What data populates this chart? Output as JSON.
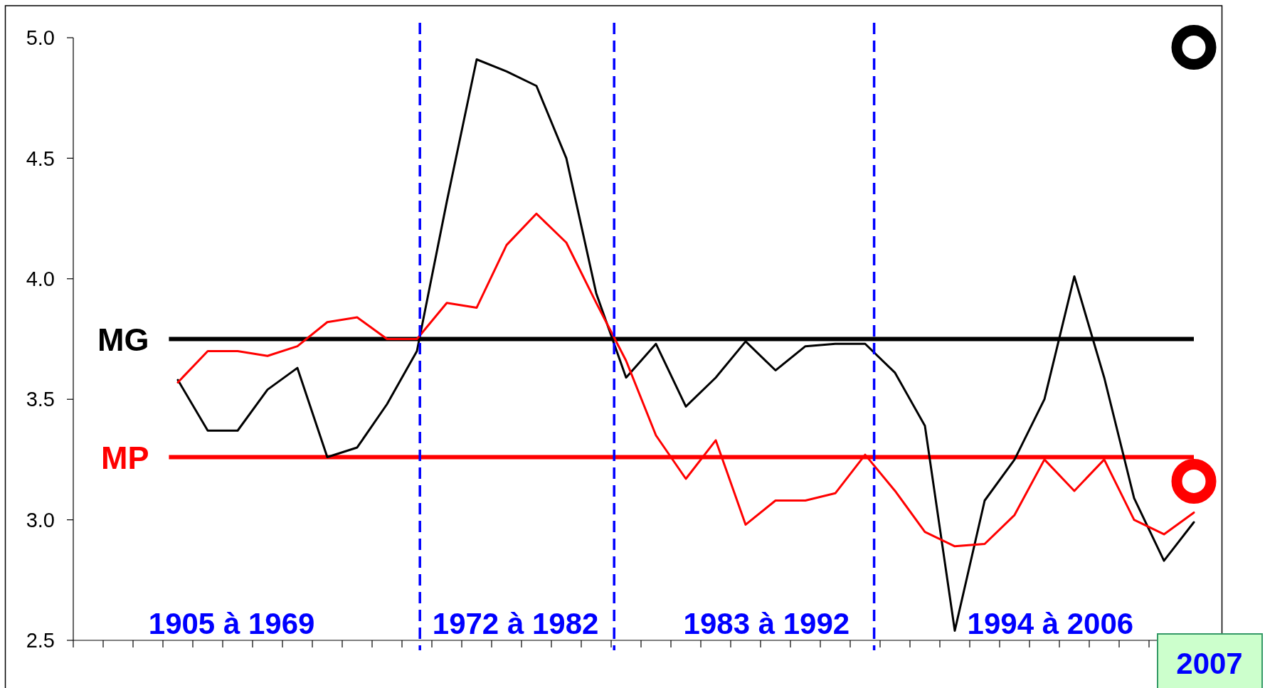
{
  "chart_data": {
    "type": "line",
    "categories": [
      null,
      null,
      null,
      null,
      null,
      null,
      null,
      null,
      null,
      null,
      null,
      null,
      null,
      null,
      null,
      null,
      null,
      null,
      null,
      null,
      null,
      null,
      null,
      null,
      null,
      null,
      null,
      null,
      null,
      null,
      null,
      null,
      null,
      null,
      null,
      null,
      null,
      null
    ],
    "series": [
      {
        "color": "#000000",
        "values": [
          null,
          null,
          null,
          3.58,
          3.37,
          3.37,
          3.54,
          3.63,
          3.26,
          3.3,
          3.48,
          3.7,
          4.32,
          4.91,
          4.86,
          4.8,
          4.5,
          3.94,
          3.59,
          3.73,
          3.47,
          3.59,
          3.74,
          3.62,
          3.72,
          3.73,
          3.73,
          3.61,
          3.39,
          2.54,
          3.08,
          3.25,
          3.5,
          4.01,
          3.59,
          3.09,
          2.83,
          2.99
        ]
      },
      {
        "color": "#ff0000",
        "values": [
          null,
          null,
          null,
          3.57,
          3.7,
          3.7,
          3.68,
          3.72,
          3.82,
          3.84,
          3.75,
          3.75,
          3.9,
          3.88,
          4.14,
          4.27,
          4.15,
          3.9,
          3.66,
          3.35,
          3.17,
          3.33,
          2.98,
          3.08,
          3.08,
          3.11,
          3.27,
          3.12,
          2.95,
          2.89,
          2.9,
          3.02,
          3.25,
          3.12,
          3.25,
          3.0,
          2.94,
          3.03
        ]
      },
      {
        "type": "scatter",
        "marker": "circle",
        "color": "#000000",
        "values": [
          null,
          null,
          null,
          null,
          null,
          null,
          null,
          null,
          null,
          null,
          null,
          null,
          null,
          null,
          null,
          null,
          null,
          null,
          null,
          null,
          null,
          null,
          null,
          null,
          null,
          null,
          null,
          null,
          null,
          null,
          null,
          null,
          null,
          null,
          null,
          null,
          null,
          4.96
        ]
      },
      {
        "type": "scatter",
        "marker": "circle",
        "color": "#ff0000",
        "values": [
          null,
          null,
          null,
          null,
          null,
          null,
          null,
          null,
          null,
          null,
          null,
          null,
          null,
          null,
          null,
          null,
          null,
          null,
          null,
          null,
          null,
          null,
          null,
          null,
          null,
          null,
          null,
          null,
          null,
          null,
          null,
          null,
          null,
          null,
          null,
          null,
          null,
          3.16
        ]
      }
    ],
    "ylim": [
      2.5,
      5.0
    ],
    "yticks": [
      2.5,
      {
        "value": 3,
        "label": "3.0"
      },
      3.5,
      {
        "value": 4,
        "label": "4.0"
      },
      4.5,
      {
        "value": 5,
        "label": "5.0"
      }
    ],
    "ref_lines": [
      {
        "axis": "y",
        "value": 3.75,
        "label": "MG",
        "color": "#000000"
      },
      {
        "axis": "y",
        "value": 3.26,
        "label": "MP",
        "color": "#ff0000"
      }
    ],
    "annotations": [
      "1905 à 1969",
      "1972 à 1982",
      "1983 à 1992",
      "1994 à 2006",
      "2007"
    ]
  }
}
